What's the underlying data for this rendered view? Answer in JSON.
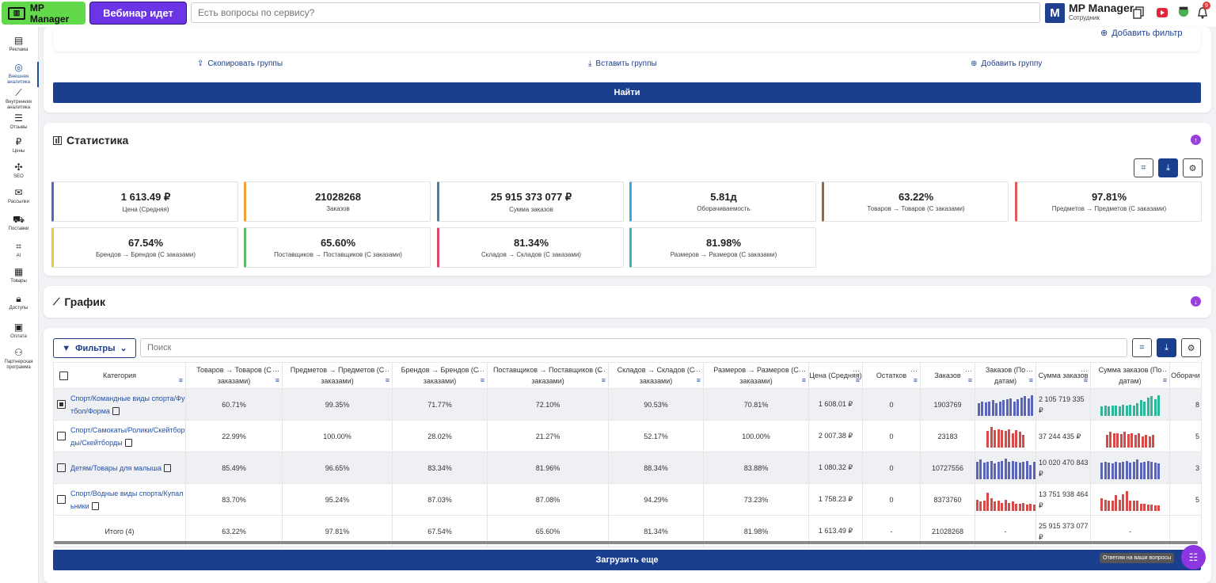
{
  "topbar": {
    "logo_label": "MP Manager",
    "webinar_label": "Вебинар идет",
    "search_placeholder": "Есть вопросы по сервису?",
    "account_initial": "M",
    "account_name": "MP Manager",
    "account_role": "Сотрудник",
    "notification_count": "9"
  },
  "sidebar": [
    {
      "label": "Реклама",
      "icon": "ads-icon",
      "glyph": "▤"
    },
    {
      "label": "Внешняя аналитика",
      "icon": "external-analytics-icon",
      "glyph": "◎",
      "active": true
    },
    {
      "label": "Внутренняя аналитика",
      "icon": "internal-analytics-icon",
      "glyph": "⟋"
    },
    {
      "label": "Отзывы",
      "icon": "reviews-icon",
      "glyph": "☰"
    },
    {
      "label": "Цены",
      "icon": "prices-icon",
      "glyph": "₽"
    },
    {
      "label": "SEO",
      "icon": "seo-icon",
      "glyph": "✣"
    },
    {
      "label": "Рассылки",
      "icon": "mail-icon",
      "glyph": "✉"
    },
    {
      "label": "Поставки",
      "icon": "truck-icon",
      "glyph": "⛟"
    },
    {
      "label": "AI",
      "icon": "ai-chip-icon",
      "glyph": "⌗"
    },
    {
      "label": "Товары",
      "icon": "box-icon",
      "glyph": "▦"
    },
    {
      "label": "Доступы",
      "icon": "lock-icon",
      "glyph": "🔒︎"
    },
    {
      "label": "Оплата",
      "icon": "wallet-icon",
      "glyph": "▣"
    },
    {
      "label": "Партнерская программа",
      "icon": "partners-icon",
      "glyph": "⚇"
    }
  ],
  "filter_panel": {
    "add_filter": "Добавить фильтр",
    "copy_groups": "Скопировать группы",
    "paste_groups": "Вставить группы",
    "add_group": "Добавить группу",
    "find_button": "Найти"
  },
  "statistics": {
    "title": "Статистика",
    "cards": [
      {
        "value": "1 613.49 ₽",
        "label": "Цена (Средняя)",
        "color": "#5468b8"
      },
      {
        "value": "21028268",
        "label": "Заказов",
        "color": "#f0a13a"
      },
      {
        "value": "25 915 373 077 ₽",
        "label": "Сумма заказов",
        "color": "#5b7b8c"
      },
      {
        "value": "5.81д",
        "label": "Оборачиваемость",
        "color": "#3aa7e0"
      },
      {
        "value": "63.22%",
        "label": "Товаров → Товаров (С заказами)",
        "color": "#8a6a5a"
      },
      {
        "value": "97.81%",
        "label": "Предметов → Предметов (С заказами)",
        "color": "#e05a5a"
      },
      {
        "value": "67.54%",
        "label": "Брендов → Брендов (С заказами)",
        "color": "#f0c83a"
      },
      {
        "value": "65.60%",
        "label": "Поставщиков → Поставщиков (С заказами)",
        "color": "#5cb86a"
      },
      {
        "value": "81.34%",
        "label": "Складов → Складов (С заказами)",
        "color": "#e0466a"
      },
      {
        "value": "81.98%",
        "label": "Размеров → Размеров (С заказами)",
        "color": "#3ab0c0"
      }
    ]
  },
  "graph": {
    "title": "График"
  },
  "table": {
    "filters_label": "Фильтры",
    "search_placeholder": "Поиск",
    "headers": [
      "Категория",
      "Товаров → Товаров (С заказами)",
      "Предметов → Предметов (С заказами)",
      "Брендов → Брендов (С заказами)",
      "Поставщиков → Поставщиков (С заказами)",
      "Складов → Складов (С заказами)",
      "Размеров → Размеров (С заказами)",
      "Цена (Средняя)",
      "Остатков",
      "Заказов",
      "Заказов (По датам)",
      "Сумма заказов",
      "Сумма заказов (По датам)",
      "Оборачи"
    ],
    "rows": [
      {
        "category": "Спорт/Командные виды спорта/Футбол/Форма",
        "checked": true,
        "cells": [
          "60.71%",
          "99.35%",
          "71.77%",
          "72.10%",
          "90.53%",
          "70.81%",
          "1 608.01 ₽",
          "0",
          "1903769",
          "2 105 719 335 ₽",
          "8"
        ],
        "spark_orders": {
          "color": "#5a64b8",
          "values": [
            0.6,
            0.7,
            0.65,
            0.7,
            0.75,
            0.6,
            0.7,
            0.75,
            0.8,
            0.85,
            0.7,
            0.8,
            0.9,
            0.95,
            0.85,
            1.0
          ]
        },
        "spark_sum": {
          "color": "#2ab89a",
          "values": [
            0.45,
            0.5,
            0.45,
            0.5,
            0.5,
            0.45,
            0.55,
            0.5,
            0.55,
            0.5,
            0.6,
            0.75,
            0.7,
            0.9,
            0.95,
            0.8,
            1.0
          ]
        }
      },
      {
        "category": "Спорт/Самокаты/Ролики/Скейтборды/Скейтборды",
        "checked": false,
        "cells": [
          "22.99%",
          "100.00%",
          "28.02%",
          "21.27%",
          "52.17%",
          "100.00%",
          "2 007.38 ₽",
          "0",
          "23183",
          "37 244 435 ₽",
          "5"
        ],
        "spark_orders": {
          "color": "#d64a4a",
          "values": [
            0.8,
            1.0,
            0.85,
            0.9,
            0.85,
            0.8,
            0.9,
            0.7,
            0.85,
            0.75,
            0.6
          ]
        },
        "spark_sum": {
          "color": "#d64a4a",
          "values": [
            0.6,
            0.75,
            0.7,
            0.7,
            0.65,
            0.75,
            0.65,
            0.7,
            0.6,
            0.7,
            0.55,
            0.6,
            0.55,
            0.6
          ]
        }
      },
      {
        "category": "Детям/Товары для малыша",
        "checked": false,
        "cells": [
          "85.49%",
          "96.65%",
          "83.34%",
          "81.96%",
          "88.34%",
          "83.88%",
          "1 080.32 ₽",
          "0",
          "10727556",
          "10 020 470 843 ₽",
          "3"
        ],
        "spark_orders": {
          "color": "#5a64b8",
          "values": [
            0.85,
            0.95,
            0.8,
            0.85,
            0.9,
            0.75,
            0.85,
            0.9,
            1.0,
            0.85,
            0.9,
            0.85,
            0.8,
            0.85,
            0.9,
            0.7,
            0.85
          ]
        },
        "spark_sum": {
          "color": "#5a64b8",
          "values": [
            0.8,
            0.85,
            0.8,
            0.75,
            0.85,
            0.8,
            0.85,
            0.9,
            0.8,
            0.85,
            0.95,
            0.8,
            0.85,
            0.9,
            0.85,
            0.8,
            0.75
          ]
        }
      },
      {
        "category": "Спорт/Водные виды спорта/Купальники",
        "checked": false,
        "cells": [
          "83.70%",
          "95.24%",
          "87.03%",
          "87.08%",
          "94.29%",
          "73.23%",
          "1 758.23 ₽",
          "0",
          "8373760",
          "13 751 938 464 ₽",
          "5"
        ],
        "spark_orders": {
          "color": "#d64a4a",
          "values": [
            0.55,
            0.45,
            0.5,
            0.9,
            0.6,
            0.45,
            0.5,
            0.4,
            0.55,
            0.4,
            0.45,
            0.35,
            0.35,
            0.4,
            0.3,
            0.35,
            0.3
          ]
        },
        "spark_sum": {
          "color": "#d64a4a",
          "values": [
            0.6,
            0.55,
            0.5,
            0.5,
            0.75,
            0.55,
            0.8,
            0.95,
            0.5,
            0.5,
            0.5,
            0.35,
            0.35,
            0.3,
            0.3,
            0.25,
            0.25
          ]
        }
      }
    ],
    "total": {
      "label": "Итого (4)",
      "cells": [
        "63.22%",
        "97.81%",
        "67.54%",
        "65.60%",
        "81.34%",
        "81.98%",
        "1 613.49 ₽",
        "-",
        "21028268",
        "-",
        "25 915 373 077 ₽",
        "-",
        ""
      ]
    },
    "load_more": "Загрузить еще"
  },
  "help": {
    "tooltip": "Ответим на ваши вопросы"
  }
}
